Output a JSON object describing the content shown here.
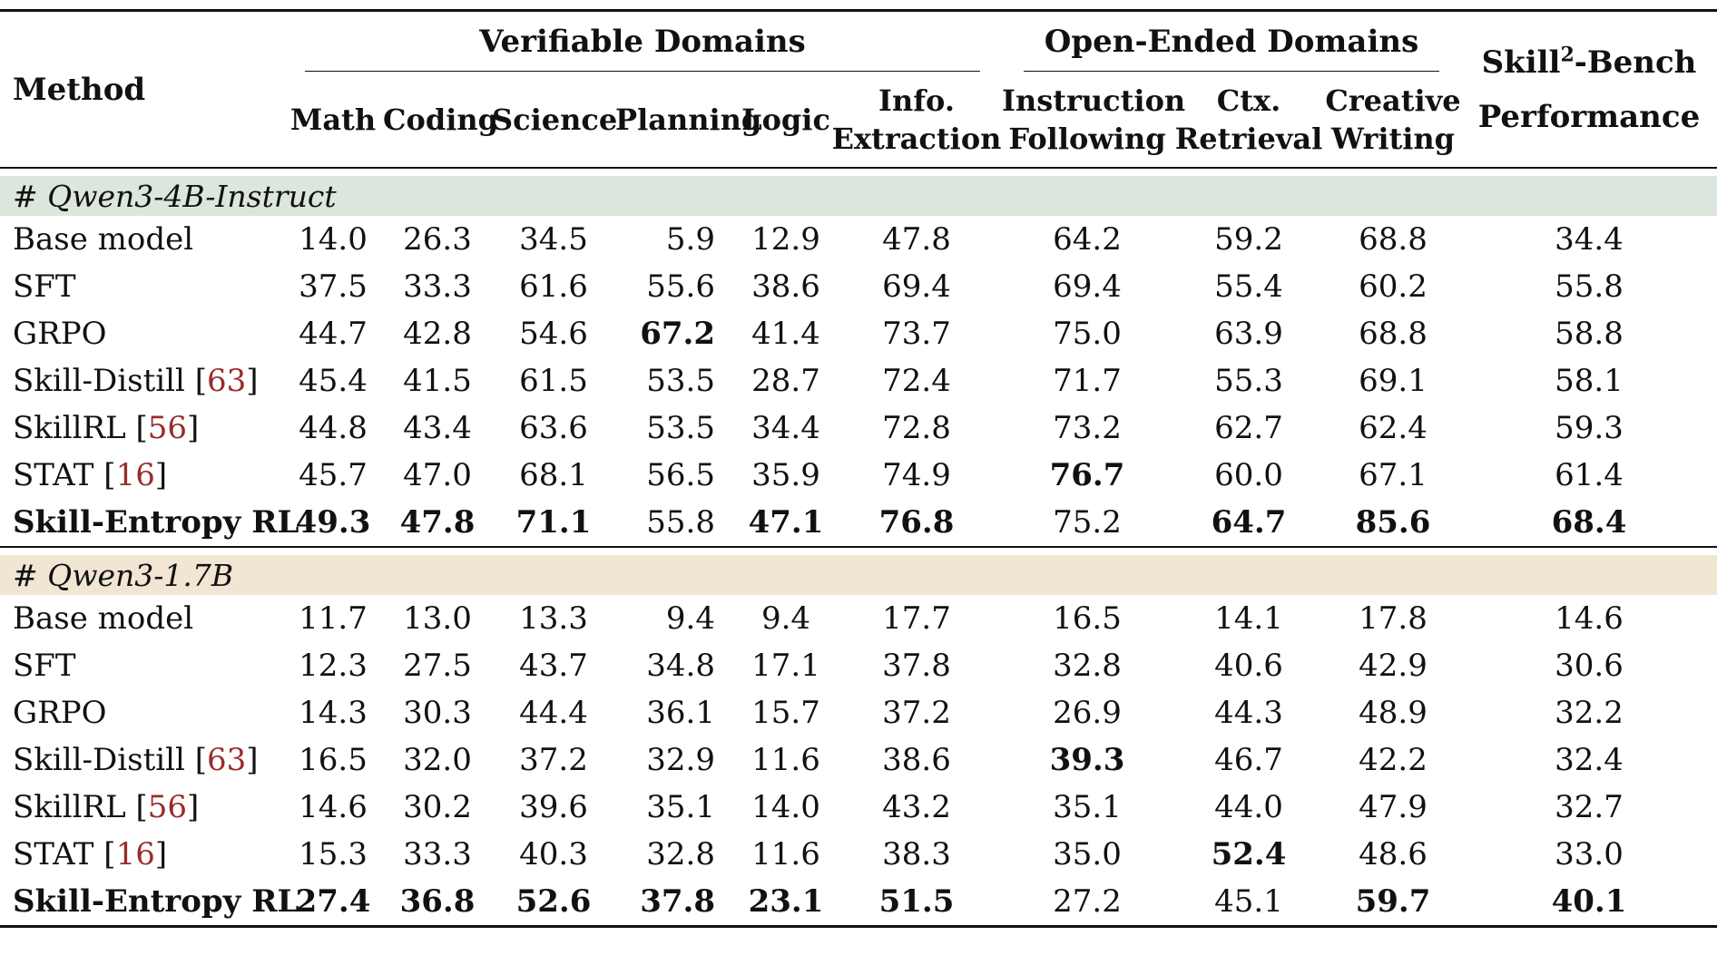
{
  "header": {
    "method": "Method",
    "verifiable": "Verifiable Domains",
    "open_ended": "Open-Ended Domains",
    "bench_line1_pre": "Skill",
    "bench_line1_sup": "2",
    "bench_line1_post": "-Bench",
    "bench_line2": "Performance",
    "columns": [
      {
        "l1": "Math",
        "l2": ""
      },
      {
        "l1": "Coding",
        "l2": ""
      },
      {
        "l1": "Science",
        "l2": ""
      },
      {
        "l1": "Planning",
        "l2": ""
      },
      {
        "l1": "Logic",
        "l2": ""
      },
      {
        "l1": "Info.",
        "l2": "Extraction"
      },
      {
        "l1": "Instruction",
        "l2": "Following"
      },
      {
        "l1": "Ctx.",
        "l2": "Retrieval"
      },
      {
        "l1": "Creative",
        "l2": "Writing"
      }
    ]
  },
  "groups": [
    {
      "label": "# Qwen3-4B-Instruct",
      "rows": [
        {
          "name": "Base model",
          "cite": "",
          "bold_name": false,
          "values": [
            "14.0",
            "26.3",
            "34.5",
            "5.9",
            "12.9",
            "47.8",
            "64.2",
            "59.2",
            "68.8",
            "34.4"
          ],
          "bold": []
        },
        {
          "name": "SFT",
          "cite": "",
          "bold_name": false,
          "values": [
            "37.5",
            "33.3",
            "61.6",
            "55.6",
            "38.6",
            "69.4",
            "69.4",
            "55.4",
            "60.2",
            "55.8"
          ],
          "bold": []
        },
        {
          "name": "GRPO",
          "cite": "",
          "bold_name": false,
          "values": [
            "44.7",
            "42.8",
            "54.6",
            "67.2",
            "41.4",
            "73.7",
            "75.0",
            "63.9",
            "68.8",
            "58.8"
          ],
          "bold": [
            3
          ]
        },
        {
          "name": "Skill-Distill ",
          "cite": "63",
          "bold_name": false,
          "values": [
            "45.4",
            "41.5",
            "61.5",
            "53.5",
            "28.7",
            "72.4",
            "71.7",
            "55.3",
            "69.1",
            "58.1"
          ],
          "bold": []
        },
        {
          "name": "SkillRL ",
          "cite": "56",
          "bold_name": false,
          "values": [
            "44.8",
            "43.4",
            "63.6",
            "53.5",
            "34.4",
            "72.8",
            "73.2",
            "62.7",
            "62.4",
            "59.3"
          ],
          "bold": []
        },
        {
          "name": "STAT ",
          "cite": "16",
          "bold_name": false,
          "values": [
            "45.7",
            "47.0",
            "68.1",
            "56.5",
            "35.9",
            "74.9",
            "76.7",
            "60.0",
            "67.1",
            "61.4"
          ],
          "bold": [
            6
          ]
        },
        {
          "name": "Skill-Entropy RL",
          "cite": "",
          "bold_name": true,
          "values": [
            "49.3",
            "47.8",
            "71.1",
            "55.8",
            "47.1",
            "76.8",
            "75.2",
            "64.7",
            "85.6",
            "68.4"
          ],
          "bold": [
            0,
            1,
            2,
            4,
            5,
            7,
            8,
            9
          ]
        }
      ]
    },
    {
      "label": "# Qwen3-1.7B",
      "rows": [
        {
          "name": "Base model",
          "cite": "",
          "bold_name": false,
          "values": [
            "11.7",
            "13.0",
            "13.3",
            "9.4",
            "9.4",
            "17.7",
            "16.5",
            "14.1",
            "17.8",
            "14.6"
          ],
          "bold": []
        },
        {
          "name": "SFT",
          "cite": "",
          "bold_name": false,
          "values": [
            "12.3",
            "27.5",
            "43.7",
            "34.8",
            "17.1",
            "37.8",
            "32.8",
            "40.6",
            "42.9",
            "30.6"
          ],
          "bold": []
        },
        {
          "name": "GRPO",
          "cite": "",
          "bold_name": false,
          "values": [
            "14.3",
            "30.3",
            "44.4",
            "36.1",
            "15.7",
            "37.2",
            "26.9",
            "44.3",
            "48.9",
            "32.2"
          ],
          "bold": []
        },
        {
          "name": "Skill-Distill ",
          "cite": "63",
          "bold_name": false,
          "values": [
            "16.5",
            "32.0",
            "37.2",
            "32.9",
            "11.6",
            "38.6",
            "39.3",
            "46.7",
            "42.2",
            "32.4"
          ],
          "bold": [
            6
          ]
        },
        {
          "name": "SkillRL ",
          "cite": "56",
          "bold_name": false,
          "values": [
            "14.6",
            "30.2",
            "39.6",
            "35.1",
            "14.0",
            "43.2",
            "35.1",
            "44.0",
            "47.9",
            "32.7"
          ],
          "bold": []
        },
        {
          "name": "STAT ",
          "cite": "16",
          "bold_name": false,
          "values": [
            "15.3",
            "33.3",
            "40.3",
            "32.8",
            "11.6",
            "38.3",
            "35.0",
            "52.4",
            "48.6",
            "33.0"
          ],
          "bold": [
            7
          ]
        },
        {
          "name": "Skill-Entropy RL",
          "cite": "",
          "bold_name": true,
          "values": [
            "27.4",
            "36.8",
            "52.6",
            "37.8",
            "23.1",
            "51.5",
            "27.2",
            "45.1",
            "59.7",
            "40.1"
          ],
          "bold": [
            0,
            1,
            2,
            3,
            4,
            5,
            8,
            9
          ]
        }
      ]
    }
  ]
}
